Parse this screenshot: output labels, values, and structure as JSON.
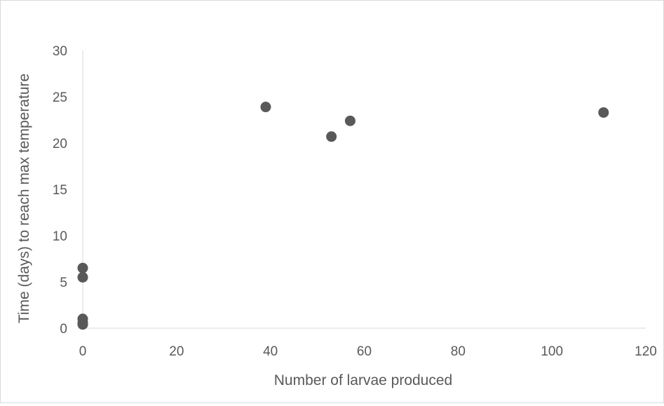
{
  "chart_data": {
    "type": "scatter",
    "title": "",
    "xlabel": "Number of larvae produced",
    "ylabel": "Time (days) to reach max temperature",
    "xlim": [
      0,
      120
    ],
    "ylim": [
      0,
      30
    ],
    "xticks": [
      "0",
      "20",
      "40",
      "60",
      "80",
      "100",
      "120"
    ],
    "yticks": [
      "0",
      "5",
      "10",
      "15",
      "20",
      "25",
      "30"
    ],
    "grid": false,
    "legend": "none",
    "marker_color": "#595959",
    "axis_color": "#d9d9d9",
    "points": [
      {
        "x": 0,
        "y": 6.5
      },
      {
        "x": 0,
        "y": 5.5
      },
      {
        "x": 0,
        "y": 1
      },
      {
        "x": 0,
        "y": 0.6
      },
      {
        "x": 0,
        "y": 0.4
      },
      {
        "x": 39,
        "y": 23.9
      },
      {
        "x": 53,
        "y": 20.7
      },
      {
        "x": 57,
        "y": 22.4
      },
      {
        "x": 111,
        "y": 23.3
      }
    ]
  }
}
